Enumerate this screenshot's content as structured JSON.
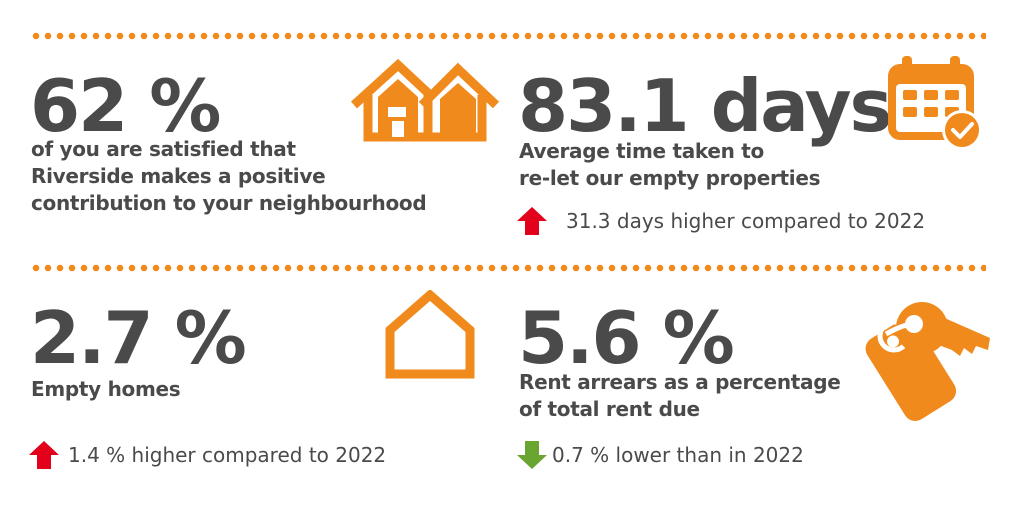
{
  "stats": [
    {
      "value": "62 %",
      "description_lines": [
        "of you are satisfied that",
        "Riverside makes a positive",
        "contribution to your neighbourhood"
      ],
      "icon": "houses-icon"
    },
    {
      "value": "83.1 days",
      "description_lines": [
        "Average time taken to",
        "re-let our empty properties"
      ],
      "trend": {
        "direction": "up",
        "text": "31.3 days higher compared to 2022",
        "color": "#e2001a"
      },
      "icon": "calendar-check-icon"
    },
    {
      "value": "2.7 %",
      "description_lines": [
        "Empty homes"
      ],
      "trend": {
        "direction": "up",
        "text": "1.4 %  higher compared to 2022",
        "color": "#e2001a"
      },
      "icon": "house-outline-icon"
    },
    {
      "value": "5.6 %",
      "description_lines": [
        "Rent arrears as a percentage",
        "of total rent due"
      ],
      "trend": {
        "direction": "down",
        "text": "0.7 %  lower than in 2022",
        "color": "#6aa532"
      },
      "icon": "keys-icon"
    }
  ],
  "colors": {
    "accent": "#f08a1c",
    "text": "#4a4a4a",
    "up": "#e2001a",
    "down": "#6aa532"
  }
}
